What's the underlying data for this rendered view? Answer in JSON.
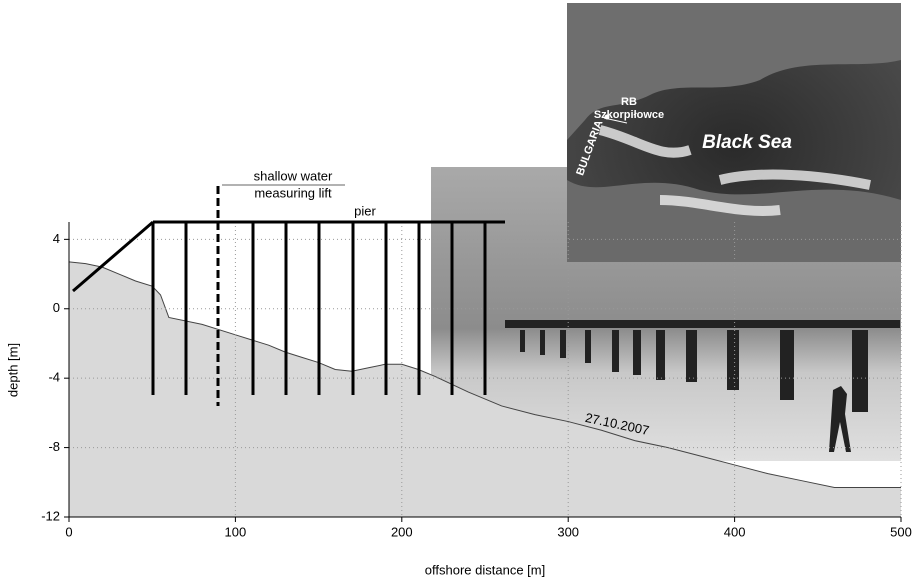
{
  "chart_data": {
    "type": "area",
    "x_label": "offshore distance [m]",
    "y_label": "depth [m]",
    "x": [
      0,
      10,
      15,
      20,
      30,
      40,
      50,
      55,
      60,
      80,
      100,
      120,
      130,
      140,
      150,
      160,
      170,
      180,
      190,
      200,
      210,
      220,
      240,
      260,
      280,
      300,
      320,
      340,
      360,
      380,
      400,
      420,
      440,
      460,
      480,
      500
    ],
    "series": [
      {
        "name": "seabed",
        "color": "#d9d9d9",
        "values": [
          2.7,
          2.6,
          2.5,
          2.4,
          2.0,
          1.6,
          1.3,
          0.8,
          -0.5,
          -0.9,
          -1.5,
          -2.1,
          -2.5,
          -2.8,
          -3.1,
          -3.5,
          -3.6,
          -3.4,
          -3.2,
          -3.2,
          -3.5,
          -3.9,
          -4.8,
          -5.6,
          -6.1,
          -6.5,
          -7.0,
          -7.6,
          -8.0,
          -8.5,
          -9.0,
          -9.5,
          -9.9,
          -10.3,
          -10.3,
          -10.3
        ]
      }
    ],
    "xlim": [
      0,
      500
    ],
    "xticks": [
      0,
      100,
      200,
      300,
      400,
      500
    ],
    "ylim": [
      -12,
      5
    ],
    "yticks": [
      -12,
      -8,
      -4,
      0,
      4
    ],
    "grid": true,
    "annotations": [
      "pier",
      "shallow water",
      "measuring lift",
      "RB",
      "Szkorpiłowce",
      "BULGARIA",
      "Black Sea",
      "27.10.2007"
    ]
  }
}
